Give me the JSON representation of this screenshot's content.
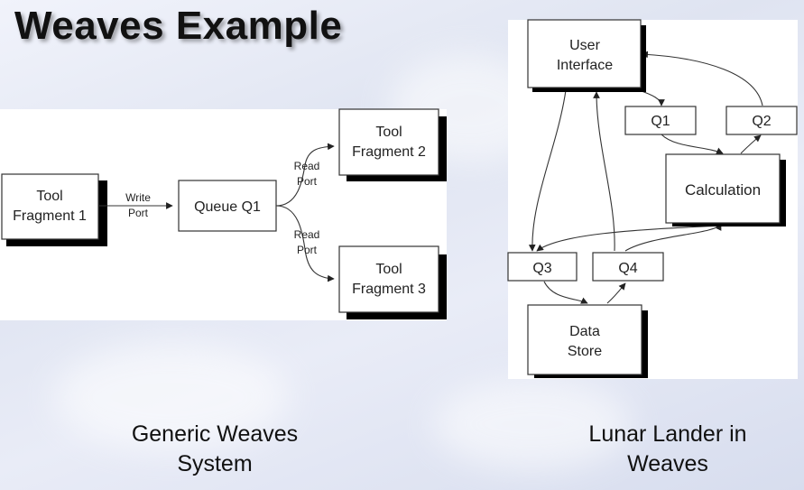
{
  "slide": {
    "title": "Weaves Example"
  },
  "left_diagram": {
    "nodes": {
      "tool_fragment_1": [
        "Tool",
        "Fragment 1"
      ],
      "queue_q1": "Queue Q1",
      "tool_fragment_2": [
        "Tool",
        "Fragment 2"
      ],
      "tool_fragment_3": [
        "Tool",
        "Fragment 3"
      ]
    },
    "edge_labels": {
      "write_port": [
        "Write",
        "Port"
      ],
      "read_port_top": [
        "Read",
        "Port"
      ],
      "read_port_bottom": [
        "Read",
        "Port"
      ]
    },
    "caption": [
      "Generic Weaves",
      "System"
    ]
  },
  "right_diagram": {
    "nodes": {
      "user_interface": [
        "User",
        "Interface"
      ],
      "q1": "Q1",
      "q2": "Q2",
      "calculation": "Calculation",
      "q3": "Q3",
      "q4": "Q4",
      "data_store": [
        "Data",
        "Store"
      ]
    },
    "caption": [
      "Lunar Lander in",
      "Weaves"
    ]
  },
  "colors": {
    "shadow": "#000000",
    "box_border": "#333333",
    "panel": "#ffffff"
  }
}
